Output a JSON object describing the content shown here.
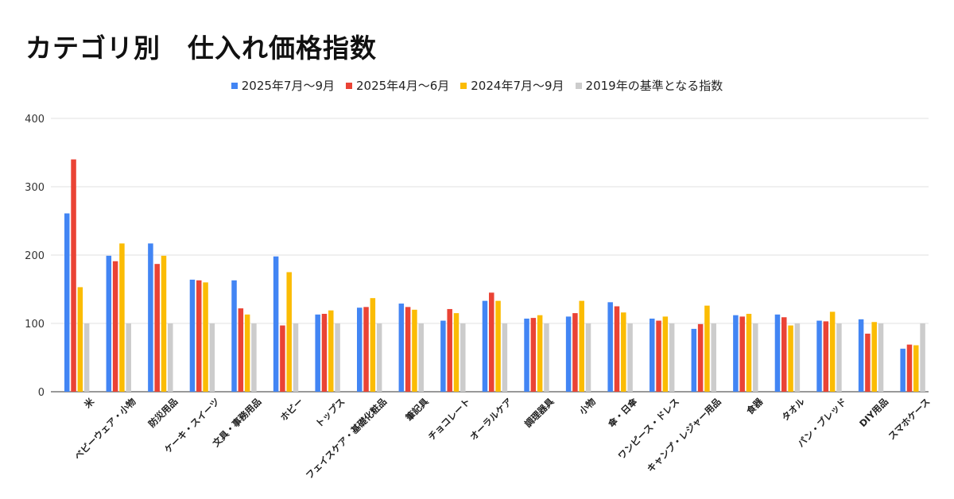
{
  "colors": {
    "s2025q3": "#4285f4",
    "s2025q2": "#ea4335",
    "s2024q3": "#fbbc04",
    "base": "#cccccc"
  },
  "chart_data": {
    "type": "bar",
    "title": "カテゴリ別　仕入れ価格指数",
    "xlabel": "",
    "ylabel": "",
    "ylim": [
      0,
      400
    ],
    "yticks": [
      0,
      100,
      200,
      300,
      400
    ],
    "legend_position": "top",
    "grid": true,
    "categories": [
      "米",
      "ベビーウェア・小物",
      "防災用品",
      "ケーキ・スイーツ",
      "文具・事務用品",
      "ホビー",
      "トップス",
      "フェイスケア・基礎化粧品",
      "筆記具",
      "チョコレート",
      "オーラルケア",
      "調理器具",
      "小物",
      "傘・日傘",
      "ワンピース・ドレス",
      "キャンプ・レジャー用品",
      "食器",
      "タオル",
      "パン・ブレッド",
      "DIY用品",
      "スマホケース"
    ],
    "series": [
      {
        "name": "2025年7月～9月",
        "color": "#4285f4",
        "values": [
          261,
          199,
          217,
          164,
          163,
          198,
          113,
          123,
          129,
          104,
          133,
          107,
          110,
          131,
          107,
          92,
          112,
          113,
          104,
          106,
          63
        ]
      },
      {
        "name": "2025年4月～6月",
        "color": "#ea4335",
        "values": [
          340,
          191,
          187,
          163,
          122,
          97,
          114,
          124,
          124,
          121,
          145,
          108,
          115,
          125,
          104,
          99,
          110,
          109,
          103,
          85,
          69
        ]
      },
      {
        "name": "2024年7月～9月",
        "color": "#fbbc04",
        "values": [
          153,
          217,
          199,
          160,
          113,
          175,
          119,
          137,
          120,
          115,
          133,
          112,
          133,
          116,
          110,
          126,
          114,
          97,
          117,
          102,
          68
        ]
      },
      {
        "name": "2019年の基準となる指数",
        "color": "#cccccc",
        "values": [
          100,
          100,
          100,
          100,
          100,
          100,
          100,
          100,
          100,
          100,
          100,
          100,
          100,
          100,
          100,
          100,
          100,
          100,
          100,
          100,
          100
        ]
      }
    ]
  }
}
